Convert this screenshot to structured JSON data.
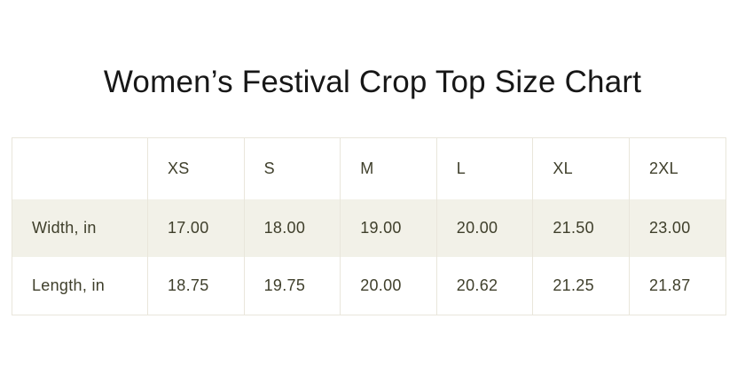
{
  "page": {
    "title": "Women’s Festival Crop Top Size Chart"
  },
  "size_chart": {
    "corner_label": "",
    "columns": [
      "XS",
      "S",
      "M",
      "L",
      "XL",
      "2XL"
    ],
    "rows": [
      {
        "label": "Width, in",
        "values": [
          "17.00",
          "18.00",
          "19.00",
          "20.00",
          "21.50",
          "23.00"
        ]
      },
      {
        "label": "Length, in",
        "values": [
          "18.75",
          "19.75",
          "20.00",
          "20.62",
          "21.25",
          "21.87"
        ]
      }
    ],
    "colors": {
      "border": "#e9e6db",
      "stripe": "#f2f1e8",
      "cell_text": "#3f3f2b",
      "title_text": "#171717"
    }
  },
  "chart_data": {
    "type": "table",
    "title": "Women’s Festival Crop Top Size Chart",
    "columns": [
      "",
      "XS",
      "S",
      "M",
      "L",
      "XL",
      "2XL"
    ],
    "rows": [
      [
        "Width, in",
        17.0,
        18.0,
        19.0,
        20.0,
        21.5,
        23.0
      ],
      [
        "Length, in",
        18.75,
        19.75,
        20.0,
        20.62,
        21.25,
        21.87
      ]
    ],
    "units": "inches",
    "striped_row": "Width, in",
    "layout": "header row of sizes across top, measurement labels in first column"
  }
}
